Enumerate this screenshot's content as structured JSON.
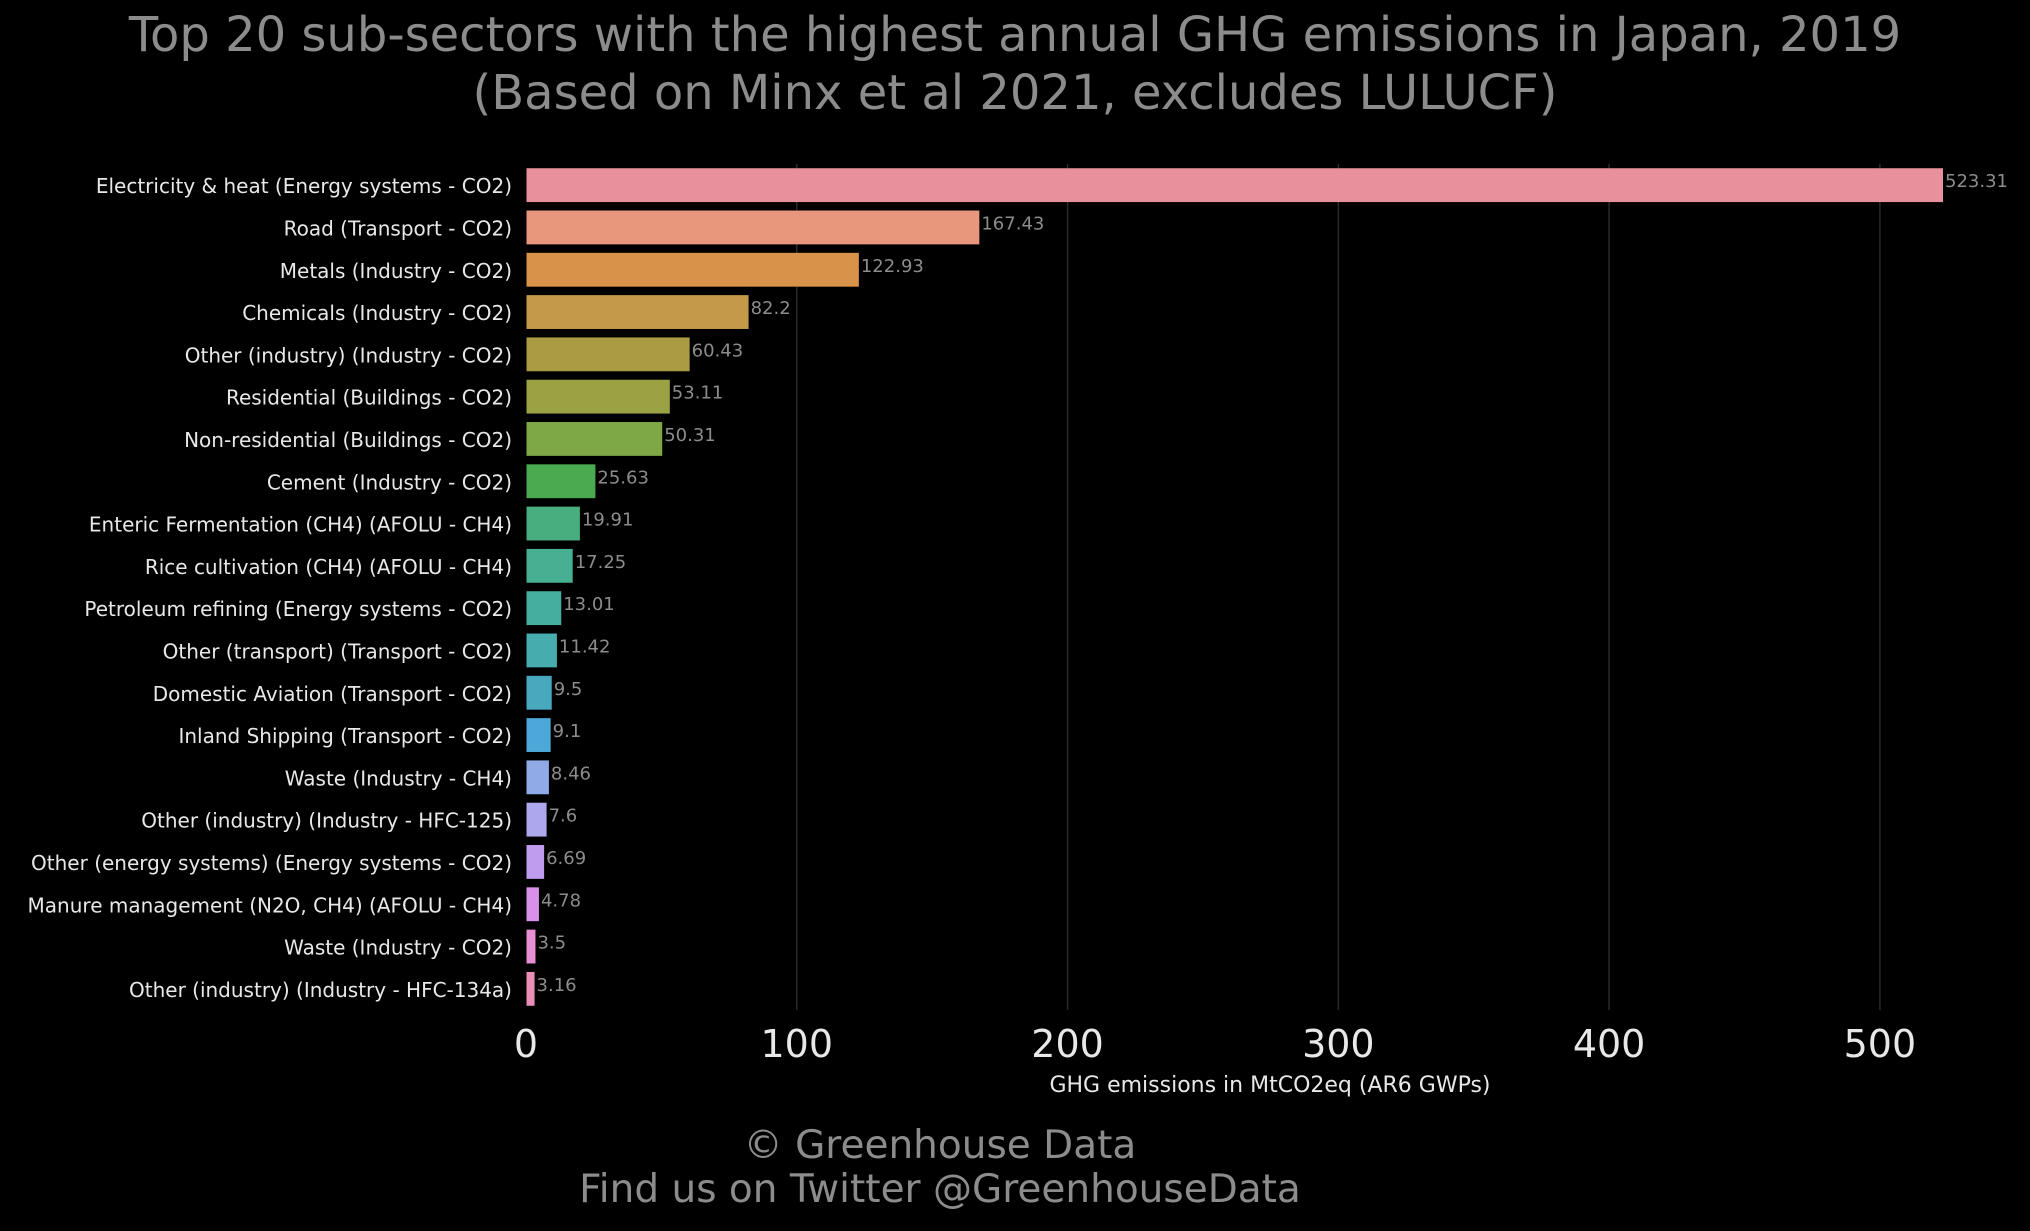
{
  "title_line1": "Top 20 sub-sectors with the highest annual GHG emissions in Japan, 2019",
  "title_line2": "(Based on Minx et al 2021, excludes LULUCF)",
  "footer_line1": "© Greenhouse Data",
  "footer_line2": "Find us on Twitter @GreenhouseData",
  "chart_data": {
    "type": "bar",
    "orientation": "horizontal",
    "title": "Top 20 sub-sectors with the highest annual GHG emissions in Japan, 2019 (Based on Minx et al 2021, excludes LULUCF)",
    "xlabel": "GHG emissions in MtCO2eq (AR6 GWPs)",
    "ylabel": "",
    "xlim": [
      0,
      540
    ],
    "xticks": [
      0,
      100,
      200,
      300,
      400,
      500
    ],
    "grid": "vertical",
    "categories": [
      "Electricity & heat (Energy systems - CO2)",
      "Road (Transport - CO2)",
      "Metals (Industry - CO2)",
      "Chemicals (Industry - CO2)",
      "Other (industry) (Industry - CO2)",
      "Residential (Buildings - CO2)",
      "Non-residential (Buildings - CO2)",
      "Cement (Industry - CO2)",
      "Enteric Fermentation (CH4) (AFOLU - CH4)",
      "Rice cultivation (CH4) (AFOLU - CH4)",
      "Petroleum refining (Energy systems - CO2)",
      "Other (transport) (Transport - CO2)",
      "Domestic Aviation (Transport - CO2)",
      "Inland Shipping (Transport - CO2)",
      "Waste (Industry - CH4)",
      "Other (industry) (Industry - HFC-125)",
      "Other (energy systems) (Energy systems - CO2)",
      "Manure management (N2O, CH4) (AFOLU - CH4)",
      "Waste (Industry - CO2)",
      "Other (industry) (Industry - HFC-134a)"
    ],
    "values": [
      523.31,
      167.43,
      122.93,
      82.2,
      60.43,
      53.11,
      50.31,
      25.63,
      19.91,
      17.25,
      13.01,
      11.42,
      9.5,
      9.1,
      8.46,
      7.6,
      6.69,
      4.78,
      3.5,
      3.16
    ],
    "value_labels": [
      "523.31",
      "167.43",
      "122.93",
      "82.2",
      "60.43",
      "53.11",
      "50.31",
      "25.63",
      "19.91",
      "17.25",
      "13.01",
      "11.42",
      "9.5",
      "9.1",
      "8.46",
      "7.6",
      "6.69",
      "4.78",
      "3.5",
      "3.16"
    ],
    "colors": [
      "#e8919c",
      "#e8967c",
      "#d8924a",
      "#c49a4a",
      "#ab9c44",
      "#9aa244",
      "#7ea846",
      "#4aaa50",
      "#48ae80",
      "#48b092",
      "#46ae9e",
      "#46acae",
      "#48a8be",
      "#4ca8d8",
      "#90aae8",
      "#ada8ee",
      "#c09cee",
      "#d890e8",
      "#e88ed2",
      "#e88eb8"
    ]
  }
}
